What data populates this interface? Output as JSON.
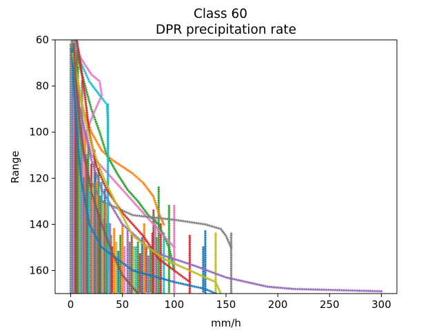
{
  "chart_data": {
    "type": "scatter",
    "title": "Class 60",
    "subtitle": "DPR precipitation rate",
    "xlabel": "mm/h",
    "ylabel": "Range",
    "xlim": [
      -15,
      315
    ],
    "ylim": [
      170,
      60
    ],
    "y_inverted": true,
    "grid": false,
    "marker": "star",
    "xticks": [
      0,
      50,
      100,
      150,
      200,
      250,
      300
    ],
    "yticks": [
      60,
      80,
      100,
      120,
      140,
      160
    ],
    "palette": [
      "#1f77b4",
      "#ff7f0e",
      "#2ca02c",
      "#d62728",
      "#9467bd",
      "#8c564b",
      "#e377c2",
      "#7f7f7f",
      "#bcbd22",
      "#17becf"
    ],
    "series": [
      {
        "color": "#ff7f0e",
        "points": [
          [
            2,
            60
          ],
          [
            4,
            70
          ],
          [
            7,
            80
          ],
          [
            12,
            90
          ],
          [
            20,
            100
          ],
          [
            30,
            108
          ],
          [
            40,
            112
          ],
          [
            50,
            115
          ],
          [
            60,
            118
          ],
          [
            70,
            122
          ],
          [
            80,
            128
          ],
          [
            85,
            135
          ],
          [
            90,
            140
          ]
        ]
      },
      {
        "color": "#2ca02c",
        "points": [
          [
            5,
            60
          ],
          [
            8,
            70
          ],
          [
            14,
            80
          ],
          [
            20,
            90
          ],
          [
            28,
            100
          ],
          [
            35,
            110
          ],
          [
            45,
            118
          ],
          [
            55,
            125
          ],
          [
            65,
            130
          ],
          [
            75,
            136
          ],
          [
            85,
            140
          ],
          [
            95,
            150
          ],
          [
            100,
            160
          ]
        ]
      },
      {
        "color": "#e377c2",
        "points": [
          [
            3,
            60
          ],
          [
            10,
            68
          ],
          [
            20,
            75
          ],
          [
            28,
            78
          ],
          [
            30,
            84
          ],
          [
            22,
            92
          ],
          [
            15,
            100
          ],
          [
            20,
            110
          ],
          [
            40,
            120
          ],
          [
            60,
            130
          ],
          [
            80,
            140
          ],
          [
            100,
            150
          ]
        ]
      },
      {
        "color": "#9467bd",
        "points": [
          [
            2,
            62
          ],
          [
            4,
            75
          ],
          [
            8,
            88
          ],
          [
            14,
            100
          ],
          [
            20,
            112
          ],
          [
            30,
            125
          ],
          [
            50,
            140
          ],
          [
            80,
            152
          ],
          [
            120,
            158
          ],
          [
            150,
            163
          ],
          [
            170,
            165
          ],
          [
            190,
            167
          ],
          [
            215,
            168
          ],
          [
            300,
            169
          ]
        ]
      },
      {
        "color": "#7f7f7f",
        "points": [
          [
            1,
            60
          ],
          [
            3,
            75
          ],
          [
            6,
            90
          ],
          [
            10,
            105
          ],
          [
            18,
            120
          ],
          [
            30,
            130
          ],
          [
            60,
            136
          ],
          [
            100,
            138
          ],
          [
            130,
            140
          ],
          [
            145,
            142
          ],
          [
            150,
            145
          ],
          [
            155,
            150
          ]
        ]
      },
      {
        "color": "#17becf",
        "points": [
          [
            4,
            60
          ],
          [
            10,
            70
          ],
          [
            18,
            78
          ],
          [
            28,
            84
          ],
          [
            35,
            88
          ],
          [
            36,
            95
          ],
          [
            36,
            110
          ],
          [
            36,
            130
          ],
          [
            36,
            160
          ]
        ]
      },
      {
        "color": "#1f77b4",
        "points": [
          [
            1,
            64
          ],
          [
            3,
            80
          ],
          [
            6,
            100
          ],
          [
            10,
            120
          ],
          [
            18,
            140
          ],
          [
            30,
            150
          ],
          [
            60,
            160
          ],
          [
            100,
            165
          ],
          [
            130,
            168
          ],
          [
            140,
            170
          ]
        ]
      },
      {
        "color": "#d62728",
        "points": [
          [
            6,
            60
          ],
          [
            10,
            72
          ],
          [
            14,
            85
          ],
          [
            18,
            100
          ],
          [
            25,
            115
          ],
          [
            35,
            125
          ],
          [
            50,
            135
          ],
          [
            70,
            145
          ],
          [
            85,
            155
          ],
          [
            115,
            165
          ]
        ]
      },
      {
        "color": "#bcbd22",
        "points": [
          [
            2,
            66
          ],
          [
            8,
            80
          ],
          [
            14,
            95
          ],
          [
            22,
            108
          ],
          [
            32,
            120
          ],
          [
            45,
            132
          ],
          [
            60,
            145
          ],
          [
            90,
            155
          ],
          [
            140,
            165
          ],
          [
            145,
            170
          ]
        ]
      },
      {
        "color": "#8c564b",
        "points": [
          [
            3,
            62
          ],
          [
            5,
            78
          ],
          [
            9,
            96
          ],
          [
            13,
            110
          ],
          [
            20,
            126
          ],
          [
            30,
            140
          ],
          [
            40,
            152
          ],
          [
            50,
            162
          ],
          [
            65,
            170
          ]
        ]
      }
    ],
    "columns": [
      {
        "x": 0,
        "color": "#7f7f7f",
        "y": [
          62,
          170
        ]
      },
      {
        "x": 2,
        "color": "#1f77b4",
        "y": [
          60,
          170
        ]
      },
      {
        "x": 3,
        "color": "#e377c2",
        "y": [
          80,
          170
        ]
      },
      {
        "x": 4,
        "color": "#7f7f7f",
        "y": [
          60,
          170
        ]
      },
      {
        "x": 5,
        "color": "#d62728",
        "y": [
          70,
          170
        ]
      },
      {
        "x": 6,
        "color": "#8c564b",
        "y": [
          65,
          170
        ]
      },
      {
        "x": 7,
        "color": "#2ca02c",
        "y": [
          72,
          170
        ]
      },
      {
        "x": 8,
        "color": "#7f7f7f",
        "y": [
          80,
          170
        ]
      },
      {
        "x": 9,
        "color": "#bcbd22",
        "y": [
          90,
          170
        ]
      },
      {
        "x": 10,
        "color": "#17becf",
        "y": [
          100,
          170
        ]
      },
      {
        "x": 11,
        "color": "#7f7f7f",
        "y": [
          78,
          170
        ]
      },
      {
        "x": 12,
        "color": "#e377c2",
        "y": [
          96,
          170
        ]
      },
      {
        "x": 13,
        "color": "#1f77b4",
        "y": [
          120,
          170
        ]
      },
      {
        "x": 14,
        "color": "#ff7f0e",
        "y": [
          100,
          170
        ]
      },
      {
        "x": 15,
        "color": "#9467bd",
        "y": [
          110,
          170
        ]
      },
      {
        "x": 16,
        "color": "#8c564b",
        "y": [
          112,
          170
        ]
      },
      {
        "x": 17,
        "color": "#2ca02c",
        "y": [
          106,
          170
        ]
      },
      {
        "x": 18,
        "color": "#17becf",
        "y": [
          126,
          170
        ]
      },
      {
        "x": 20,
        "color": "#d62728",
        "y": [
          114,
          170
        ]
      },
      {
        "x": 21,
        "color": "#bcbd22",
        "y": [
          124,
          170
        ]
      },
      {
        "x": 22,
        "color": "#e377c2",
        "y": [
          130,
          170
        ]
      },
      {
        "x": 23,
        "color": "#7f7f7f",
        "y": [
          108,
          170
        ]
      },
      {
        "x": 24,
        "color": "#1f77b4",
        "y": [
          118,
          170
        ]
      },
      {
        "x": 25,
        "color": "#ff7f0e",
        "y": [
          122,
          170
        ]
      },
      {
        "x": 26,
        "color": "#9467bd",
        "y": [
          134,
          170
        ]
      },
      {
        "x": 27,
        "color": "#2ca02c",
        "y": [
          116,
          170
        ]
      },
      {
        "x": 28,
        "color": "#8c564b",
        "y": [
          136,
          170
        ]
      },
      {
        "x": 29,
        "color": "#d62728",
        "y": [
          128,
          170
        ]
      },
      {
        "x": 30,
        "color": "#17becf",
        "y": [
          122,
          170
        ]
      },
      {
        "x": 31,
        "color": "#bcbd22",
        "y": [
          130,
          170
        ]
      },
      {
        "x": 32,
        "color": "#e377c2",
        "y": [
          138,
          170
        ]
      },
      {
        "x": 33,
        "color": "#1f77b4",
        "y": [
          125,
          170
        ]
      },
      {
        "x": 34,
        "color": "#ff7f0e",
        "y": [
          132,
          170
        ]
      },
      {
        "x": 35,
        "color": "#2ca02c",
        "y": [
          140,
          170
        ]
      },
      {
        "x": 36,
        "color": "#17becf",
        "y": [
          88,
          170
        ]
      },
      {
        "x": 38,
        "color": "#9467bd",
        "y": [
          140,
          170
        ]
      },
      {
        "x": 39,
        "color": "#7f7f7f",
        "y": [
          145,
          170
        ]
      },
      {
        "x": 40,
        "color": "#d62728",
        "y": [
          150,
          170
        ]
      },
      {
        "x": 42,
        "color": "#ff7f0e",
        "y": [
          142,
          170
        ]
      },
      {
        "x": 44,
        "color": "#bcbd22",
        "y": [
          148,
          170
        ]
      },
      {
        "x": 46,
        "color": "#1f77b4",
        "y": [
          152,
          170
        ]
      },
      {
        "x": 48,
        "color": "#2ca02c",
        "y": [
          145,
          170
        ]
      },
      {
        "x": 50,
        "color": "#ff7f0e",
        "y": [
          140,
          170
        ]
      },
      {
        "x": 52,
        "color": "#e377c2",
        "y": [
          150,
          170
        ]
      },
      {
        "x": 55,
        "color": "#9467bd",
        "y": [
          143,
          170
        ]
      },
      {
        "x": 57,
        "color": "#7f7f7f",
        "y": [
          148,
          170
        ]
      },
      {
        "x": 59,
        "color": "#8c564b",
        "y": [
          144,
          170
        ]
      },
      {
        "x": 61,
        "color": "#bcbd22",
        "y": [
          150,
          170
        ]
      },
      {
        "x": 63,
        "color": "#17becf",
        "y": [
          150,
          170
        ]
      },
      {
        "x": 65,
        "color": "#2ca02c",
        "y": [
          148,
          170
        ]
      },
      {
        "x": 67,
        "color": "#d62728",
        "y": [
          153,
          170
        ]
      },
      {
        "x": 69,
        "color": "#1f77b4",
        "y": [
          146,
          170
        ]
      },
      {
        "x": 71,
        "color": "#ff7f0e",
        "y": [
          140,
          170
        ]
      },
      {
        "x": 73,
        "color": "#8c564b",
        "y": [
          150,
          170
        ]
      },
      {
        "x": 75,
        "color": "#9467bd",
        "y": [
          154,
          170
        ]
      },
      {
        "x": 77,
        "color": "#2ca02c",
        "y": [
          150,
          170
        ]
      },
      {
        "x": 79,
        "color": "#d62728",
        "y": [
          144,
          170
        ]
      },
      {
        "x": 80,
        "color": "#8c564b",
        "y": [
          134,
          170
        ]
      },
      {
        "x": 82,
        "color": "#e377c2",
        "y": [
          138,
          170
        ]
      },
      {
        "x": 83,
        "color": "#7f7f7f",
        "y": [
          146,
          170
        ]
      },
      {
        "x": 85,
        "color": "#2ca02c",
        "y": [
          124,
          170
        ]
      },
      {
        "x": 87,
        "color": "#d62728",
        "y": [
          140,
          170
        ]
      },
      {
        "x": 90,
        "color": "#17becf",
        "y": [
          144,
          170
        ]
      },
      {
        "x": 95,
        "color": "#2ca02c",
        "y": [
          132,
          170
        ]
      },
      {
        "x": 100,
        "color": "#e377c2",
        "y": [
          132,
          170
        ]
      },
      {
        "x": 115,
        "color": "#d62728",
        "y": [
          145,
          170
        ]
      },
      {
        "x": 128,
        "color": "#1f77b4",
        "y": [
          150,
          170
        ]
      },
      {
        "x": 130,
        "color": "#1f77b4",
        "y": [
          143,
          170
        ]
      },
      {
        "x": 140,
        "color": "#bcbd22",
        "y": [
          144,
          170
        ]
      },
      {
        "x": 155,
        "color": "#7f7f7f",
        "y": [
          144,
          170
        ]
      }
    ]
  }
}
